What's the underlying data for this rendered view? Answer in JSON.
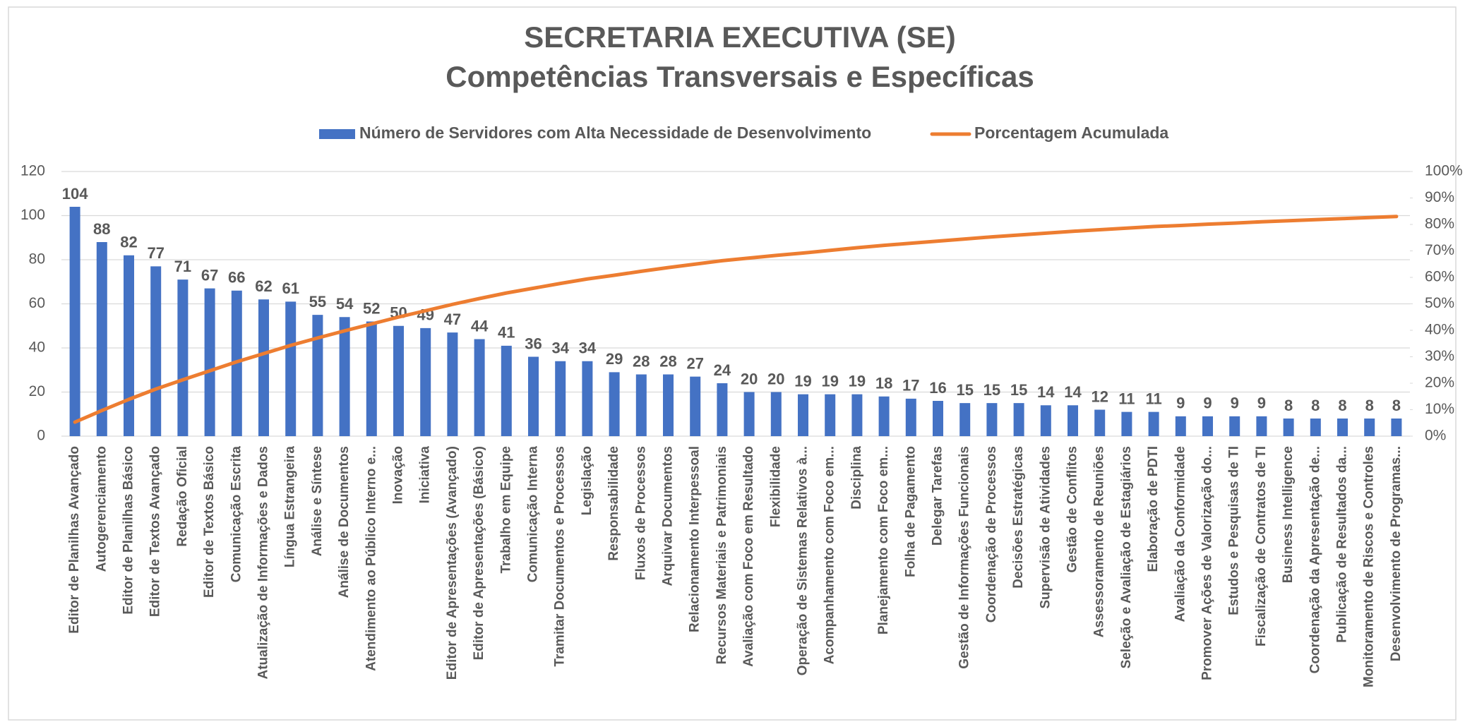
{
  "chart_data": {
    "type": "bar_line",
    "title": "SECRETARIA EXECUTIVA (SE)",
    "subtitle": "Competências Transversais e Específicas",
    "categories": [
      "Editor de Planilhas Avançado",
      "Autogerenciamento",
      "Editor de Planilhas Básico",
      "Editor de Textos Avançado",
      "Redação Oficial",
      "Editor de Textos Básico",
      "Comunicação Escrita",
      "Atualização de Informações e Dados",
      "Língua Estrangeira",
      "Análise e Síntese",
      "Análise de Documentos",
      "Atendimento ao Público Interno e...",
      "Inovação",
      "Iniciativa",
      "Editor de Apresentações (Avançado)",
      "Editor de Apresentações (Básico)",
      "Trabalho em Equipe",
      "Comunicação Interna",
      "Tramitar Documentos e Processos",
      "Legislação",
      "Responsabilidade",
      "Fluxos de Processos",
      "Arquivar Documentos",
      "Relacionamento Interpessoal",
      "Recursos Materiais e Patrimoniais",
      "Avaliação com Foco em Resultado",
      "Flexibilidade",
      "Operação de Sistemas Relativos à...",
      "Acompanhamento com Foco em...",
      "Disciplina",
      "Planejamento com Foco em...",
      "Folha de Pagamento",
      "Delegar Tarefas",
      "Gestão de Informações Funcionais",
      "Coordenação de Processos",
      "Decisões Estratégicas",
      "Supervisão de Atividades",
      "Gestão de Conflitos",
      "Assessoramento de Reuniões",
      "Seleção e Avaliação de Estagiários",
      "Elaboração de PDTI",
      "Avaliação da Conformidade",
      "Promover Ações de Valorização do...",
      "Estudos e Pesquisas de TI",
      "Fiscalização de Contratos de TI",
      "Business Intelligence",
      "Coordenação da Apresentação de...",
      "Publicação de Resultados da...",
      "Monitoramento de Riscos e Controles",
      "Desenvolvimento de Programas..."
    ],
    "series": [
      {
        "name": "Número de Servidores com Alta Necessidade de Desenvolvimento",
        "type": "bar",
        "color": "#4472c4",
        "values": [
          104,
          88,
          82,
          77,
          71,
          67,
          66,
          62,
          61,
          55,
          54,
          52,
          50,
          49,
          47,
          44,
          41,
          36,
          34,
          34,
          29,
          28,
          28,
          27,
          24,
          20,
          20,
          19,
          19,
          19,
          18,
          17,
          16,
          15,
          15,
          15,
          14,
          14,
          12,
          11,
          11,
          9,
          9,
          9,
          9,
          8,
          8,
          8,
          8,
          8
        ]
      },
      {
        "name": "Porcentagem Acumulada",
        "type": "line",
        "axis": "y2",
        "color": "#ed7d31",
        "values": [
          5.3,
          9.7,
          13.9,
          17.8,
          21.3,
          24.7,
          28.1,
          31.2,
          34.3,
          37.1,
          39.8,
          42.4,
          45.0,
          47.4,
          49.8,
          52.0,
          54.1,
          55.9,
          57.7,
          59.4,
          60.8,
          62.3,
          63.7,
          65.0,
          66.3,
          67.3,
          68.3,
          69.2,
          70.2,
          71.2,
          72.1,
          72.9,
          73.7,
          74.5,
          75.3,
          76.0,
          76.7,
          77.4,
          78.0,
          78.6,
          79.2,
          79.6,
          80.1,
          80.5,
          81.0,
          81.4,
          81.8,
          82.2,
          82.6,
          83.0
        ]
      }
    ],
    "ylim": [
      0,
      120
    ],
    "yticks": [
      0,
      20,
      40,
      60,
      80,
      100,
      120
    ],
    "y2lim": [
      0,
      100
    ],
    "y2ticks": [
      {
        "value": 0,
        "label": "0%"
      },
      {
        "value": 10,
        "label": "10%"
      },
      {
        "value": 20,
        "label": "20%"
      },
      {
        "value": 30,
        "label": "30%"
      },
      {
        "value": 40,
        "label": "40%"
      },
      {
        "value": 50,
        "label": "50%"
      },
      {
        "value": 60,
        "label": "60%"
      },
      {
        "value": 70,
        "label": "70%"
      },
      {
        "value": 80,
        "label": "80%"
      },
      {
        "value": 90,
        "label": "90%"
      },
      {
        "value": 100,
        "label": "100%"
      }
    ],
    "grid": true,
    "legend": "top"
  }
}
